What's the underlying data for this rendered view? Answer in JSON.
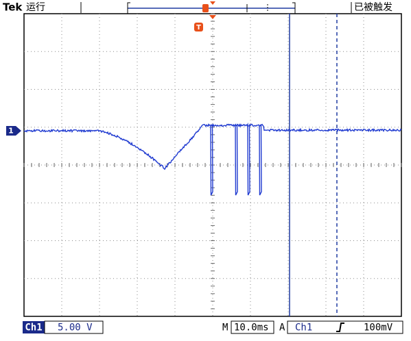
{
  "header": {
    "brand": "Tek",
    "status": "运行",
    "trigger_status": "已被触发"
  },
  "markers": {
    "trigger": "T",
    "channel": "1"
  },
  "footer": {
    "channel": "Ch1",
    "scale": "5.00 V",
    "time_label": "M",
    "timebase": "10.0ms",
    "trigger_label": "A",
    "trigger_source": "Ch1",
    "trigger_level": "100mV"
  }
}
